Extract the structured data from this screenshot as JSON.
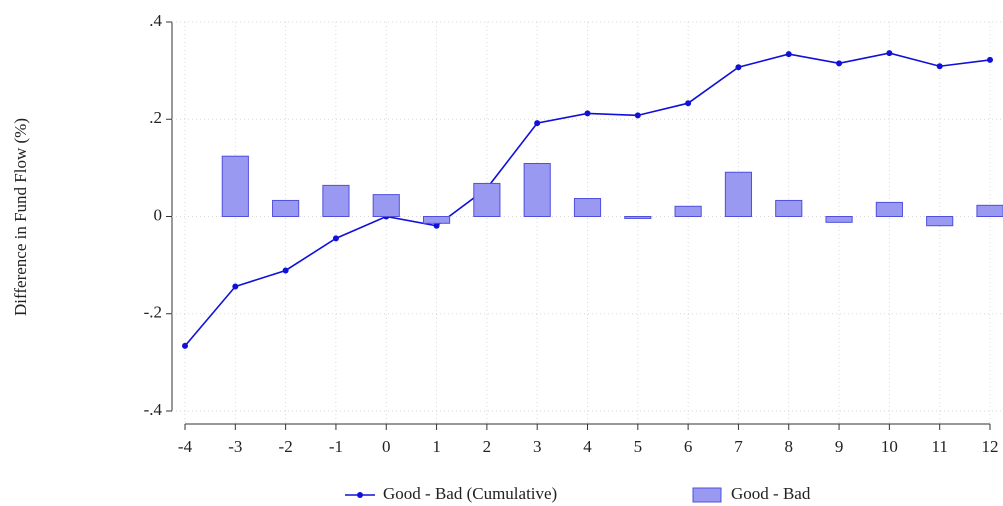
{
  "chart_data": {
    "type": "combo",
    "y_label": "Difference in Fund Flow (%)",
    "xlim": [
      -4,
      12
    ],
    "xticks": [
      -4,
      -3,
      -2,
      -1,
      0,
      1,
      2,
      3,
      4,
      5,
      6,
      7,
      8,
      9,
      10,
      11,
      12
    ],
    "ylim": [
      -0.4,
      0.4
    ],
    "yticks": [
      {
        "value": -0.4,
        "label": "-.4"
      },
      {
        "value": -0.2,
        "label": "-.2"
      },
      0,
      {
        "value": 0.2,
        "label": ".2"
      },
      {
        "value": 0.4,
        "label": ".4"
      }
    ],
    "grid": true,
    "legend": "bottom",
    "series": [
      {
        "name": "Good - Bad (Cumulative)",
        "type": "line",
        "color": "#1010d8",
        "x": [
          -4,
          -3,
          -2,
          -1,
          0,
          1,
          2,
          3,
          4,
          5,
          6,
          7,
          8,
          9,
          10,
          11,
          12
        ],
        "values": [
          -0.266,
          -0.144,
          -0.111,
          -0.045,
          0,
          -0.019,
          0.058,
          0.192,
          0.212,
          0.208,
          0.233,
          0.307,
          0.334,
          0.315,
          0.336,
          0.309,
          0.322
        ]
      },
      {
        "name": "Good - Bad",
        "type": "bar",
        "color": "#9999f2",
        "x": [
          -3,
          -2,
          -1,
          0,
          1,
          2,
          3,
          4,
          5,
          6,
          7,
          8,
          9,
          10,
          11,
          12
        ],
        "values": [
          0.124,
          0.033,
          0.064,
          0.045,
          -0.014,
          0.068,
          0.109,
          0.037,
          -0.004,
          0.021,
          0.091,
          0.033,
          -0.012,
          0.029,
          -0.019,
          0.023
        ]
      }
    ]
  }
}
